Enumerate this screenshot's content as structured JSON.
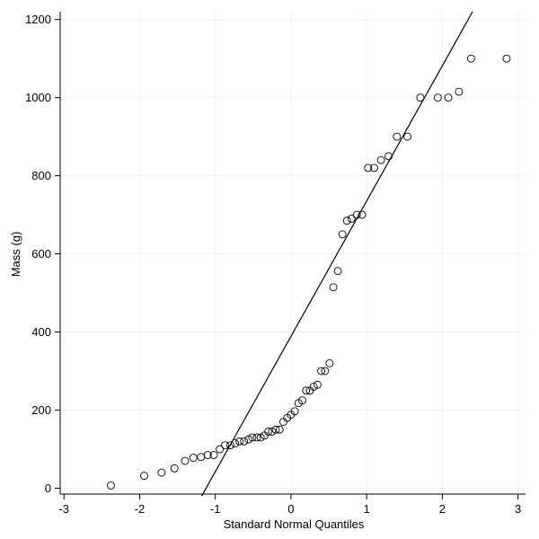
{
  "chart_data": {
    "type": "scatter",
    "xlabel": "Standard Normal Quantiles",
    "ylabel": "Mass (g)",
    "xlim": [
      -3.05,
      3.1
    ],
    "ylim": [
      -15,
      1220
    ],
    "xticks": [
      -3,
      -2,
      -1,
      0,
      1,
      2,
      3
    ],
    "yticks": [
      0,
      200,
      400,
      600,
      800,
      1000,
      1200
    ],
    "grid": true,
    "series": [
      {
        "points": [
          [
            -2.38,
            7
          ],
          [
            -1.94,
            32
          ],
          [
            -1.71,
            40
          ],
          [
            -1.54,
            51
          ],
          [
            -1.4,
            70
          ],
          [
            -1.29,
            78
          ],
          [
            -1.19,
            80
          ],
          [
            -1.1,
            85
          ],
          [
            -1.02,
            85
          ],
          [
            -0.94,
            100
          ],
          [
            -0.87,
            110
          ],
          [
            -0.8,
            110
          ],
          [
            -0.74,
            115
          ],
          [
            -0.68,
            120
          ],
          [
            -0.62,
            120
          ],
          [
            -0.56,
            125
          ],
          [
            -0.51,
            130
          ],
          [
            -0.45,
            130
          ],
          [
            -0.4,
            130
          ],
          [
            -0.35,
            135
          ],
          [
            -0.3,
            145
          ],
          [
            -0.25,
            145
          ],
          [
            -0.2,
            150
          ],
          [
            -0.15,
            150
          ],
          [
            -0.1,
            170
          ],
          [
            -0.05,
            180
          ],
          [
            0.0,
            188
          ],
          [
            0.05,
            197
          ],
          [
            0.1,
            218
          ],
          [
            0.15,
            225
          ],
          [
            0.2,
            250
          ],
          [
            0.25,
            250
          ],
          [
            0.3,
            260
          ],
          [
            0.35,
            265
          ],
          [
            0.4,
            300
          ],
          [
            0.45,
            300
          ],
          [
            0.51,
            320
          ],
          [
            0.56,
            514.5
          ],
          [
            0.62,
            556
          ],
          [
            0.68,
            650
          ],
          [
            0.74,
            685
          ],
          [
            0.8,
            690
          ],
          [
            0.87,
            700
          ],
          [
            0.94,
            700
          ],
          [
            1.02,
            820
          ],
          [
            1.1,
            820
          ],
          [
            1.19,
            840
          ],
          [
            1.29,
            850
          ],
          [
            1.4,
            900
          ],
          [
            1.54,
            900
          ],
          [
            1.71,
            1000
          ],
          [
            1.94,
            1000
          ],
          [
            2.08,
            1000
          ],
          [
            2.22,
            1015
          ],
          [
            2.38,
            1100
          ],
          [
            2.85,
            1100
          ]
        ]
      }
    ],
    "reference_line": {
      "x": [
        -1.18,
        2.4
      ],
      "y": [
        -20,
        1220
      ]
    }
  }
}
